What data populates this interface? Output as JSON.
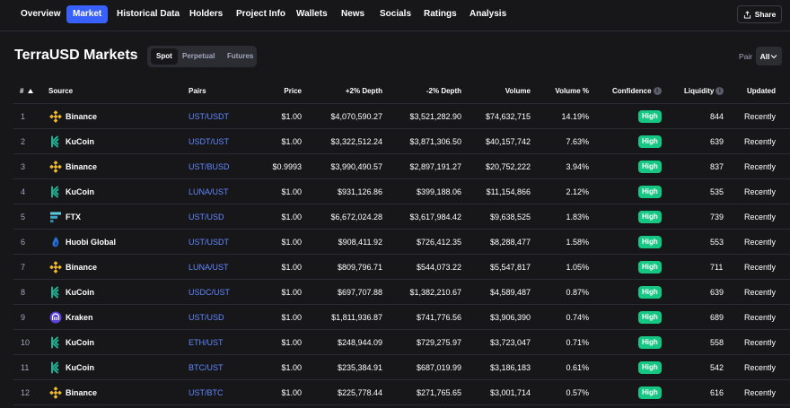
{
  "nav": {
    "tabs": [
      {
        "label": "Overview"
      },
      {
        "label": "Market"
      },
      {
        "label": "Historical Data"
      },
      {
        "label": "Holders"
      },
      {
        "label": "Project Info"
      },
      {
        "label": "Wallets"
      },
      {
        "label": "News"
      },
      {
        "label": "Socials"
      },
      {
        "label": "Ratings"
      },
      {
        "label": "Analysis"
      }
    ],
    "active_tab": "Market",
    "share_label": "Share"
  },
  "header": {
    "title": "TerraUSD Markets",
    "market_types": [
      "Spot",
      "Perpetual",
      "Futures"
    ],
    "active_market_type": "Spot",
    "pair_label": "Pair",
    "pair_value": "All"
  },
  "table": {
    "columns": [
      "#",
      "Source",
      "Pairs",
      "Price",
      "+2% Depth",
      "-2% Depth",
      "Volume",
      "Volume %",
      "Confidence",
      "Liquidity",
      "Updated"
    ],
    "rows": [
      {
        "rank": "1",
        "source": "Binance",
        "pair": "UST/USDT",
        "price": "$1.00",
        "depth_plus": "$4,070,590.27",
        "depth_minus": "$3,521,282.90",
        "volume": "$74,632,715",
        "volume_pct": "14.19%",
        "confidence": "High",
        "liquidity": "844",
        "updated": "Recently"
      },
      {
        "rank": "2",
        "source": "KuCoin",
        "pair": "USDT/UST",
        "price": "$1.00",
        "depth_plus": "$3,322,512.24",
        "depth_minus": "$3,871,306.50",
        "volume": "$40,157,742",
        "volume_pct": "7.63%",
        "confidence": "High",
        "liquidity": "639",
        "updated": "Recently"
      },
      {
        "rank": "3",
        "source": "Binance",
        "pair": "UST/BUSD",
        "price": "$0.9993",
        "depth_plus": "$3,990,490.57",
        "depth_minus": "$2,897,191.27",
        "volume": "$20,752,222",
        "volume_pct": "3.94%",
        "confidence": "High",
        "liquidity": "837",
        "updated": "Recently"
      },
      {
        "rank": "4",
        "source": "KuCoin",
        "pair": "LUNA/UST",
        "price": "$1.00",
        "depth_plus": "$931,126.86",
        "depth_minus": "$399,188.06",
        "volume": "$11,154,866",
        "volume_pct": "2.12%",
        "confidence": "High",
        "liquidity": "535",
        "updated": "Recently"
      },
      {
        "rank": "5",
        "source": "FTX",
        "pair": "UST/USD",
        "price": "$1.00",
        "depth_plus": "$6,672,024.28",
        "depth_minus": "$3,617,984.42",
        "volume": "$9,638,525",
        "volume_pct": "1.83%",
        "confidence": "High",
        "liquidity": "739",
        "updated": "Recently"
      },
      {
        "rank": "6",
        "source": "Huobi Global",
        "pair": "UST/USDT",
        "price": "$1.00",
        "depth_plus": "$908,411.92",
        "depth_minus": "$726,412.35",
        "volume": "$8,288,477",
        "volume_pct": "1.58%",
        "confidence": "High",
        "liquidity": "553",
        "updated": "Recently"
      },
      {
        "rank": "7",
        "source": "Binance",
        "pair": "LUNA/UST",
        "price": "$1.00",
        "depth_plus": "$809,796.71",
        "depth_minus": "$544,073.22",
        "volume": "$5,547,817",
        "volume_pct": "1.05%",
        "confidence": "High",
        "liquidity": "711",
        "updated": "Recently"
      },
      {
        "rank": "8",
        "source": "KuCoin",
        "pair": "USDC/UST",
        "price": "$1.00",
        "depth_plus": "$697,707.88",
        "depth_minus": "$1,382,210.67",
        "volume": "$4,589,487",
        "volume_pct": "0.87%",
        "confidence": "High",
        "liquidity": "639",
        "updated": "Recently"
      },
      {
        "rank": "9",
        "source": "Kraken",
        "pair": "UST/USD",
        "price": "$1.00",
        "depth_plus": "$1,811,936.87",
        "depth_minus": "$741,776.56",
        "volume": "$3,906,390",
        "volume_pct": "0.74%",
        "confidence": "High",
        "liquidity": "689",
        "updated": "Recently"
      },
      {
        "rank": "10",
        "source": "KuCoin",
        "pair": "ETH/UST",
        "price": "$1.00",
        "depth_plus": "$248,944.09",
        "depth_minus": "$729,275.97",
        "volume": "$3,723,047",
        "volume_pct": "0.71%",
        "confidence": "High",
        "liquidity": "558",
        "updated": "Recently"
      },
      {
        "rank": "11",
        "source": "KuCoin",
        "pair": "BTC/UST",
        "price": "$1.00",
        "depth_plus": "$235,384.91",
        "depth_minus": "$687,019.99",
        "volume": "$3,186,183",
        "volume_pct": "0.61%",
        "confidence": "High",
        "liquidity": "542",
        "updated": "Recently"
      },
      {
        "rank": "12",
        "source": "Binance",
        "pair": "UST/BTC",
        "price": "$1.00",
        "depth_plus": "$225,778.44",
        "depth_minus": "$271,765.65",
        "volume": "$3,001,714",
        "volume_pct": "0.57%",
        "confidence": "High",
        "liquidity": "616",
        "updated": "Recently"
      }
    ]
  },
  "icons": {
    "Binance": "binance-logo-icon",
    "KuCoin": "kucoin-logo-icon",
    "FTX": "ftx-logo-icon",
    "Huobi Global": "huobi-logo-icon",
    "Kraken": "kraken-logo-icon"
  },
  "colors": {
    "background": "#17171a",
    "accent": "#3861fb",
    "link": "#6188ff",
    "high_badge": "#16c784",
    "divider": "#2b2d33",
    "muted_text": "#a1a7bb",
    "binance": "#f3ba2f",
    "kucoin": "#23af91",
    "ftx": "#5fcade",
    "huobi": "#2a6fd6",
    "kraken": "#5741d9"
  }
}
